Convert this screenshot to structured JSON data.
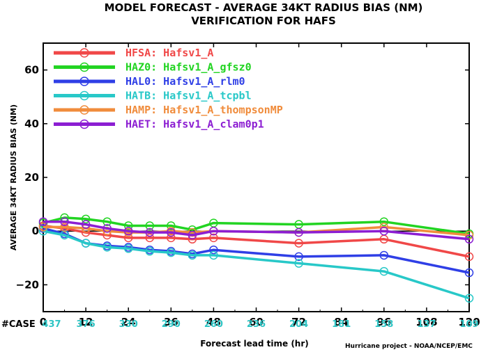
{
  "chart_data": {
    "type": "line",
    "title": "MODEL FORECAST - AVERAGE 34KT RADIUS BIAS (NM)",
    "subtitle": "VERIFICATION FOR HAFS",
    "xlabel": "Forecast lead time (hr)",
    "ylabel": "AVERAGE 34KT RADIUS BIAS (NM)",
    "credit": "Hurricane project - NOAA/NCEP/EMC",
    "xlim": [
      0,
      120
    ],
    "ylim": [
      -30,
      70
    ],
    "x_ticks": [
      0,
      12,
      24,
      36,
      48,
      60,
      72,
      84,
      96,
      108,
      120
    ],
    "y_ticks": [
      -20,
      0,
      20,
      40,
      60
    ],
    "x": [
      0,
      6,
      12,
      18,
      24,
      30,
      36,
      42,
      48,
      72,
      96,
      120
    ],
    "case_label": "#CASE",
    "case_counts": {
      "x": [
        0,
        12,
        24,
        36,
        48,
        60,
        72,
        84,
        96,
        108,
        120
      ],
      "values": [
        "437",
        "376",
        "330",
        "290",
        "260",
        "236",
        "204",
        "181",
        "158",
        "137",
        "109"
      ],
      "color": "#2ec4c4"
    },
    "series": [
      {
        "name": "HFSA: Hafsv1_A",
        "color": "#f04848",
        "values": [
          2,
          1,
          -0.5,
          -1.5,
          -2.5,
          -2.5,
          -2.5,
          -3,
          -2.5,
          -4.5,
          -3,
          -9.5
        ]
      },
      {
        "name": "HAZ0: Hafsv1_A_gfsz0",
        "color": "#22d422",
        "values": [
          3,
          5,
          4.5,
          3.5,
          2,
          2,
          2,
          0.5,
          3,
          2.5,
          3.5,
          -1
        ]
      },
      {
        "name": "HAL0: Hafsv1_A_rlm0",
        "color": "#2f3fe6",
        "values": [
          1,
          -1,
          -4.5,
          -5.5,
          -6,
          -7,
          -7.5,
          -8.5,
          -7,
          -9.5,
          -9,
          -15.5
        ]
      },
      {
        "name": "HATB: Hafsv1_A_tcpbl",
        "color": "#28c8c8",
        "values": [
          0,
          -1.5,
          -4.5,
          -6,
          -6.5,
          -7.5,
          -8,
          -9,
          -9,
          -12,
          -15,
          -25
        ]
      },
      {
        "name": "HAMP: Hafsv1_A_thompsonMP",
        "color": "#f08c3c",
        "values": [
          1.5,
          1.5,
          1,
          0,
          -0.5,
          -0.5,
          0,
          -0.5,
          0,
          -0.5,
          1.5,
          -1.5
        ]
      },
      {
        "name": "HAET: Hafsv1_A_clam0p1",
        "color": "#8c1ed2",
        "values": [
          3.5,
          3.5,
          2.5,
          1,
          0,
          -0.5,
          -0.5,
          -1.5,
          0,
          -0.5,
          0,
          -3
        ]
      }
    ]
  }
}
